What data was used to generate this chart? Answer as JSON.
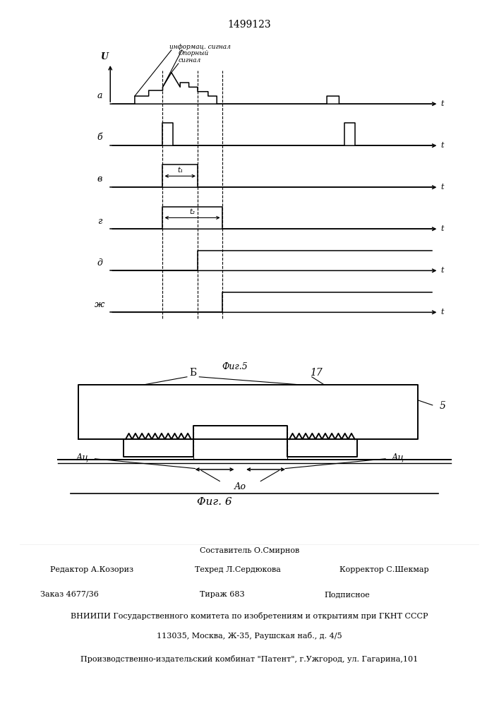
{
  "patent_number": "1499123",
  "fig5_caption": "Фиг.5",
  "fig6_caption": "Φиг. 6",
  "bg_color": "#ffffff",
  "line_color": "#000000",
  "text_info_signal": "информац. сигнал",
  "text_ref_signal": "Опорный\nсигнал",
  "text_t1": "t₁",
  "text_t2": "t₂",
  "footer_line1": "Составитель О.Смирнов",
  "footer_editor": "Редактор А.Козориз",
  "footer_techred": "Техред Л.Сердюкова",
  "footer_corrector": "Корректор С.Шекмар",
  "footer_order": "Заказ 4677/36",
  "footer_tirazh": "Тираж 683",
  "footer_podpisnoe": "Подписное",
  "footer_vniipи": "ВНИИПИ Государственного комитета по изобретениям и открытиям при ГКНТ СССР",
  "footer_address": "113035, Москва, Ж-35, Раушская наб., д. 4/5",
  "footer_patent": "Производственно-издательский комбинат \"Патент\", г.Ужгород, ул. Гагарина,101",
  "label_b": "Б",
  "label_17": "17",
  "label_5": "5",
  "label_ac": "Ац",
  "label_a0": "Ао"
}
